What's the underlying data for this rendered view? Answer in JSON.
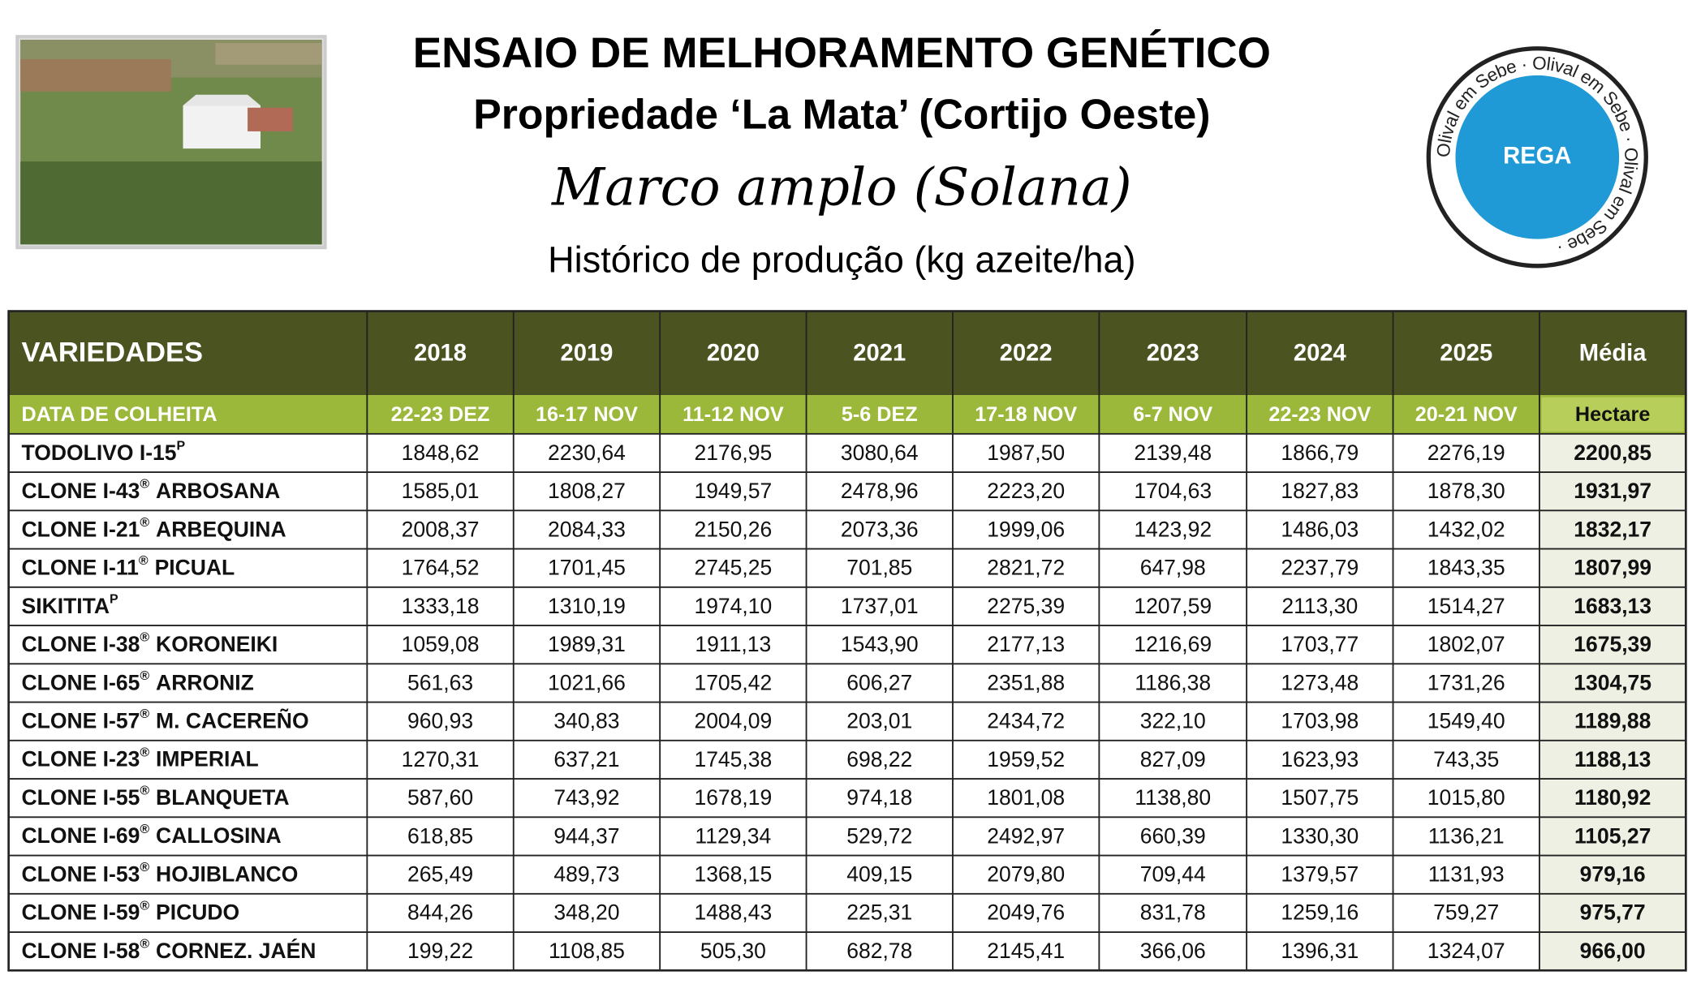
{
  "header": {
    "title": "ENSAIO DE MELHORAMENTO GENÉTICO",
    "subtitle": "Propriedade ‘La Mata’ (Cortijo Oeste)",
    "handwritten": "Marco amplo (Solana)",
    "caption": "Histórico de produção (kg azeite/ha)"
  },
  "badge": {
    "label": "REGA",
    "ring_text": "Olival em Sebe · Olival em Sebe · Olival em Sebe ·"
  },
  "table": {
    "columns": [
      "VARIEDADES",
      "2018",
      "2019",
      "2020",
      "2021",
      "2022",
      "2023",
      "2024",
      "2025",
      "Média"
    ],
    "harvest_row": [
      "DATA DE COLHEITA",
      "22-23 DEZ",
      "16-17 NOV",
      "11-12 NOV",
      "5-6 DEZ",
      "17-18 NOV",
      "6-7 NOV",
      "22-23 NOV",
      "20-21 NOV",
      "Hectare"
    ],
    "rows": [
      {
        "variety": "TODOLIVO I-15",
        "sup": "P",
        "values": [
          "1848,62",
          "2230,64",
          "2176,95",
          "3080,64",
          "1987,50",
          "2139,48",
          "1866,79",
          "2276,19"
        ],
        "media": "2200,85"
      },
      {
        "variety": "CLONE I-43",
        "sup": "®",
        "suffix": "ARBOSANA",
        "values": [
          "1585,01",
          "1808,27",
          "1949,57",
          "2478,96",
          "2223,20",
          "1704,63",
          "1827,83",
          "1878,30"
        ],
        "media": "1931,97"
      },
      {
        "variety": "CLONE I-21",
        "sup": "®",
        "suffix": "ARBEQUINA",
        "values": [
          "2008,37",
          "2084,33",
          "2150,26",
          "2073,36",
          "1999,06",
          "1423,92",
          "1486,03",
          "1432,02"
        ],
        "media": "1832,17"
      },
      {
        "variety": "CLONE I-11",
        "sup": "®",
        "suffix": "PICUAL",
        "values": [
          "1764,52",
          "1701,45",
          "2745,25",
          "701,85",
          "2821,72",
          "647,98",
          "2237,79",
          "1843,35"
        ],
        "media": "1807,99"
      },
      {
        "variety": "SIKITITA",
        "sup": "P",
        "values": [
          "1333,18",
          "1310,19",
          "1974,10",
          "1737,01",
          "2275,39",
          "1207,59",
          "2113,30",
          "1514,27"
        ],
        "media": "1683,13"
      },
      {
        "variety": "CLONE I-38",
        "sup": "®",
        "suffix": "KORONEIKI",
        "values": [
          "1059,08",
          "1989,31",
          "1911,13",
          "1543,90",
          "2177,13",
          "1216,69",
          "1703,77",
          "1802,07"
        ],
        "media": "1675,39"
      },
      {
        "variety": "CLONE I-65",
        "sup": "®",
        "suffix": "ARRONIZ",
        "values": [
          "561,63",
          "1021,66",
          "1705,42",
          "606,27",
          "2351,88",
          "1186,38",
          "1273,48",
          "1731,26"
        ],
        "media": "1304,75"
      },
      {
        "variety": "CLONE I-57",
        "sup": "®",
        "suffix": "M. CACEREÑO",
        "values": [
          "960,93",
          "340,83",
          "2004,09",
          "203,01",
          "2434,72",
          "322,10",
          "1703,98",
          "1549,40"
        ],
        "media": "1189,88"
      },
      {
        "variety": "CLONE I-23",
        "sup": "®",
        "suffix": "IMPERIAL",
        "values": [
          "1270,31",
          "637,21",
          "1745,38",
          "698,22",
          "1959,52",
          "827,09",
          "1623,93",
          "743,35"
        ],
        "media": "1188,13"
      },
      {
        "variety": "CLONE I-55",
        "sup": "®",
        "suffix": "BLANQUETA",
        "values": [
          "587,60",
          "743,92",
          "1678,19",
          "974,18",
          "1801,08",
          "1138,80",
          "1507,75",
          "1015,80"
        ],
        "media": "1180,92"
      },
      {
        "variety": "CLONE I-69",
        "sup": "®",
        "suffix": "CALLOSINA",
        "values": [
          "618,85",
          "944,37",
          "1129,34",
          "529,72",
          "2492,97",
          "660,39",
          "1330,30",
          "1136,21"
        ],
        "media": "1105,27"
      },
      {
        "variety": "CLONE I-53",
        "sup": "®",
        "suffix": "HOJIBLANCO",
        "values": [
          "265,49",
          "489,73",
          "1368,15",
          "409,15",
          "2079,80",
          "709,44",
          "1379,57",
          "1131,93"
        ],
        "media": "979,16"
      },
      {
        "variety": "CLONE I-59",
        "sup": "®",
        "suffix": "PICUDO",
        "values": [
          "844,26",
          "348,20",
          "1488,43",
          "225,31",
          "2049,76",
          "831,78",
          "1259,16",
          "759,27"
        ],
        "media": "975,77"
      },
      {
        "variety": "CLONE I-58",
        "sup": "®",
        "suffix": "CORNEZ. JAÉN",
        "values": [
          "199,22",
          "1108,85",
          "505,30",
          "682,78",
          "2145,41",
          "366,06",
          "1396,31",
          "1324,07"
        ],
        "media": "966,00"
      }
    ]
  }
}
